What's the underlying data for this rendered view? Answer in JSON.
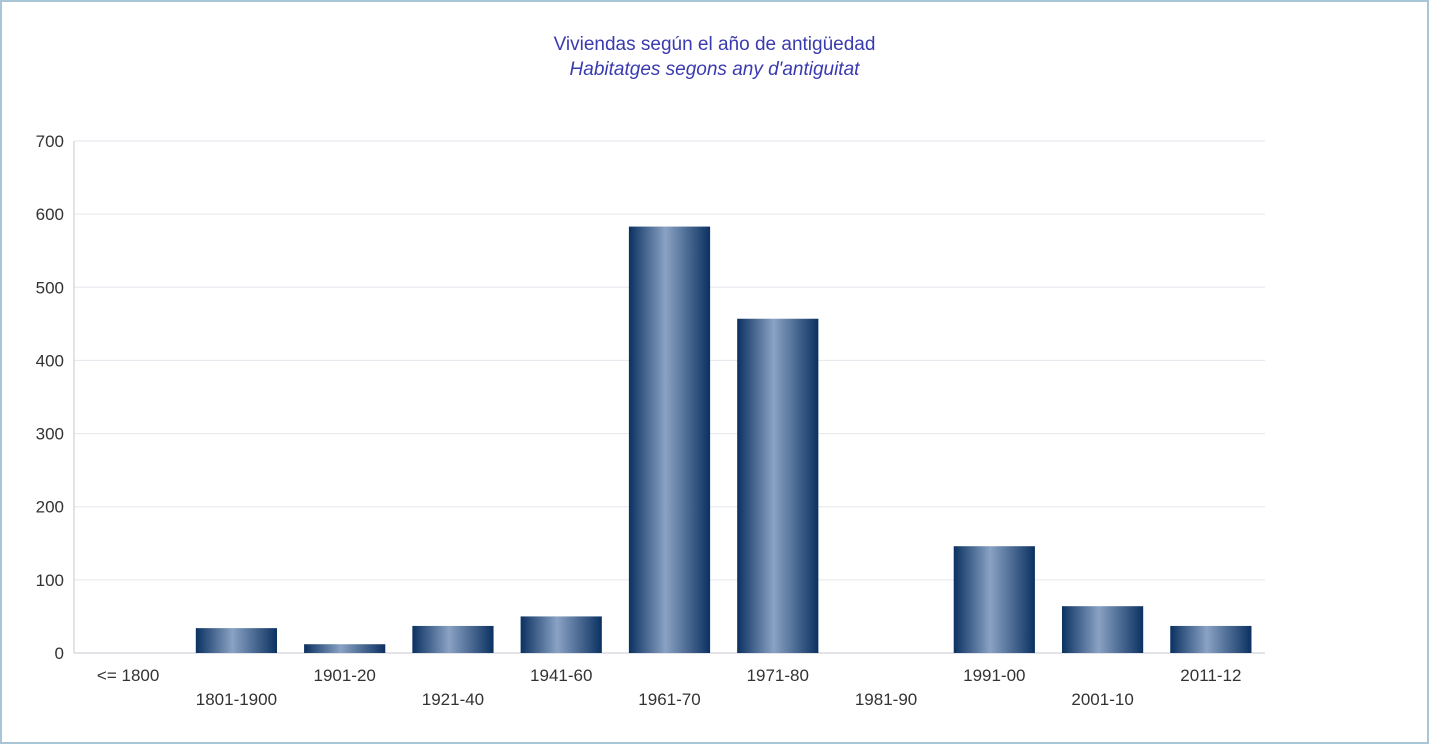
{
  "chart_data": {
    "type": "bar",
    "title": "Viviendas según el año de antigüedad",
    "subtitle": "Habitatges segons any d'antiguitat",
    "xlabel": "",
    "ylabel": "",
    "ylim": [
      0,
      700
    ],
    "yticks": [
      "0",
      "100",
      "200",
      "300",
      "400",
      "500",
      "600",
      "700"
    ],
    "grid": true,
    "legend": "none",
    "categories": [
      "<= 1800",
      "1801-1900",
      "1901-20",
      "1921-40",
      "1941-60",
      "1961-70",
      "1971-80",
      "1981-90",
      "1991-00",
      "2001-10",
      "2011-12"
    ],
    "values": [
      0,
      34,
      12,
      37,
      50,
      583,
      457,
      0,
      146,
      64,
      37
    ],
    "colors": {
      "bar_dark": "#0b3161",
      "bar_light": "#8aa2c4",
      "title": "#3a3ab0",
      "grid": "#e6e6ee",
      "axis": "#c8c8d2",
      "tick_text": "#333333",
      "frame": "#a9c6d6"
    }
  }
}
